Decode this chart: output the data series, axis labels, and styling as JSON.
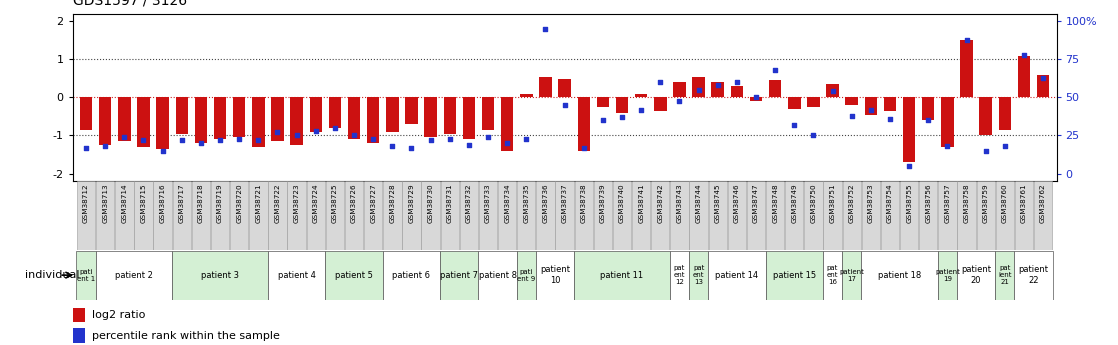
{
  "title": "GDS1597 / 3126",
  "samples": [
    "GSM38712",
    "GSM38713",
    "GSM38714",
    "GSM38715",
    "GSM38716",
    "GSM38717",
    "GSM38718",
    "GSM38719",
    "GSM38720",
    "GSM38721",
    "GSM38722",
    "GSM38723",
    "GSM38724",
    "GSM38725",
    "GSM38726",
    "GSM38727",
    "GSM38728",
    "GSM38729",
    "GSM38730",
    "GSM38731",
    "GSM38732",
    "GSM38733",
    "GSM38734",
    "GSM38735",
    "GSM38736",
    "GSM38737",
    "GSM38738",
    "GSM38739",
    "GSM38740",
    "GSM38741",
    "GSM38742",
    "GSM38743",
    "GSM38744",
    "GSM38745",
    "GSM38746",
    "GSM38747",
    "GSM38748",
    "GSM38749",
    "GSM38750",
    "GSM38751",
    "GSM38752",
    "GSM38753",
    "GSM38754",
    "GSM38755",
    "GSM38756",
    "GSM38757",
    "GSM38758",
    "GSM38759",
    "GSM38760",
    "GSM38761",
    "GSM38762"
  ],
  "log2_ratio": [
    -0.85,
    -1.25,
    -1.15,
    -1.3,
    -1.35,
    -0.95,
    -1.2,
    -1.1,
    -1.05,
    -1.3,
    -1.15,
    -1.25,
    -0.9,
    -0.8,
    -1.1,
    -1.2,
    -0.9,
    -0.7,
    -1.05,
    -0.95,
    -1.1,
    -0.85,
    -1.4,
    0.1,
    0.55,
    0.48,
    -1.4,
    -0.25,
    -0.4,
    0.1,
    -0.35,
    0.4,
    0.55,
    0.4,
    0.3,
    -0.1,
    0.45,
    -0.3,
    -0.25,
    0.35,
    -0.2,
    -0.45,
    -0.35,
    -1.7,
    -0.6,
    -1.3,
    1.5,
    -1.0,
    -0.85,
    1.1,
    0.6
  ],
  "percentile": [
    17,
    18,
    24,
    22,
    15,
    22,
    20,
    22,
    23,
    22,
    27,
    25,
    28,
    30,
    25,
    23,
    18,
    17,
    22,
    23,
    19,
    24,
    20,
    23,
    95,
    45,
    17,
    35,
    37,
    42,
    60,
    48,
    55,
    58,
    60,
    50,
    68,
    32,
    25,
    54,
    38,
    42,
    36,
    5,
    35,
    18,
    88,
    15,
    18,
    78,
    63
  ],
  "patients": [
    {
      "label": "pati\nent 1",
      "start": 0,
      "end": 1,
      "color": "#d4f0d4"
    },
    {
      "label": "patient 2",
      "start": 1,
      "end": 5,
      "color": "#ffffff"
    },
    {
      "label": "patient 3",
      "start": 5,
      "end": 10,
      "color": "#d4f0d4"
    },
    {
      "label": "patient 4",
      "start": 10,
      "end": 13,
      "color": "#ffffff"
    },
    {
      "label": "patient 5",
      "start": 13,
      "end": 16,
      "color": "#d4f0d4"
    },
    {
      "label": "patient 6",
      "start": 16,
      "end": 19,
      "color": "#ffffff"
    },
    {
      "label": "patient 7",
      "start": 19,
      "end": 21,
      "color": "#d4f0d4"
    },
    {
      "label": "patient 8",
      "start": 21,
      "end": 23,
      "color": "#ffffff"
    },
    {
      "label": "pati\nent 9",
      "start": 23,
      "end": 24,
      "color": "#d4f0d4"
    },
    {
      "label": "patient\n10",
      "start": 24,
      "end": 26,
      "color": "#ffffff"
    },
    {
      "label": "patient 11",
      "start": 26,
      "end": 31,
      "color": "#d4f0d4"
    },
    {
      "label": "pat\nent\n12",
      "start": 31,
      "end": 32,
      "color": "#ffffff"
    },
    {
      "label": "pat\nent\n13",
      "start": 32,
      "end": 33,
      "color": "#d4f0d4"
    },
    {
      "label": "patient 14",
      "start": 33,
      "end": 36,
      "color": "#ffffff"
    },
    {
      "label": "patient 15",
      "start": 36,
      "end": 39,
      "color": "#d4f0d4"
    },
    {
      "label": "pat\nent\n16",
      "start": 39,
      "end": 40,
      "color": "#ffffff"
    },
    {
      "label": "patient\n17",
      "start": 40,
      "end": 41,
      "color": "#d4f0d4"
    },
    {
      "label": "patient 18",
      "start": 41,
      "end": 45,
      "color": "#ffffff"
    },
    {
      "label": "patient\n19",
      "start": 45,
      "end": 46,
      "color": "#d4f0d4"
    },
    {
      "label": "patient\n20",
      "start": 46,
      "end": 48,
      "color": "#ffffff"
    },
    {
      "label": "pat\nient\n21",
      "start": 48,
      "end": 49,
      "color": "#d4f0d4"
    },
    {
      "label": "patient\n22",
      "start": 49,
      "end": 51,
      "color": "#ffffff"
    }
  ],
  "ylim": [
    -2.2,
    2.2
  ],
  "bar_color": "#cc1111",
  "dot_color": "#2233cc",
  "right_yticks_pct": [
    0,
    25,
    50,
    75,
    100
  ],
  "right_ylabels": [
    "0",
    "25",
    "50",
    "75",
    "100%"
  ],
  "right_ycolor": "#2233cc",
  "sample_box_color": "#d8d8d8",
  "sample_box_edge": "#999999",
  "legend_bar_label": "log2 ratio",
  "legend_dot_label": "percentile rank within the sample"
}
